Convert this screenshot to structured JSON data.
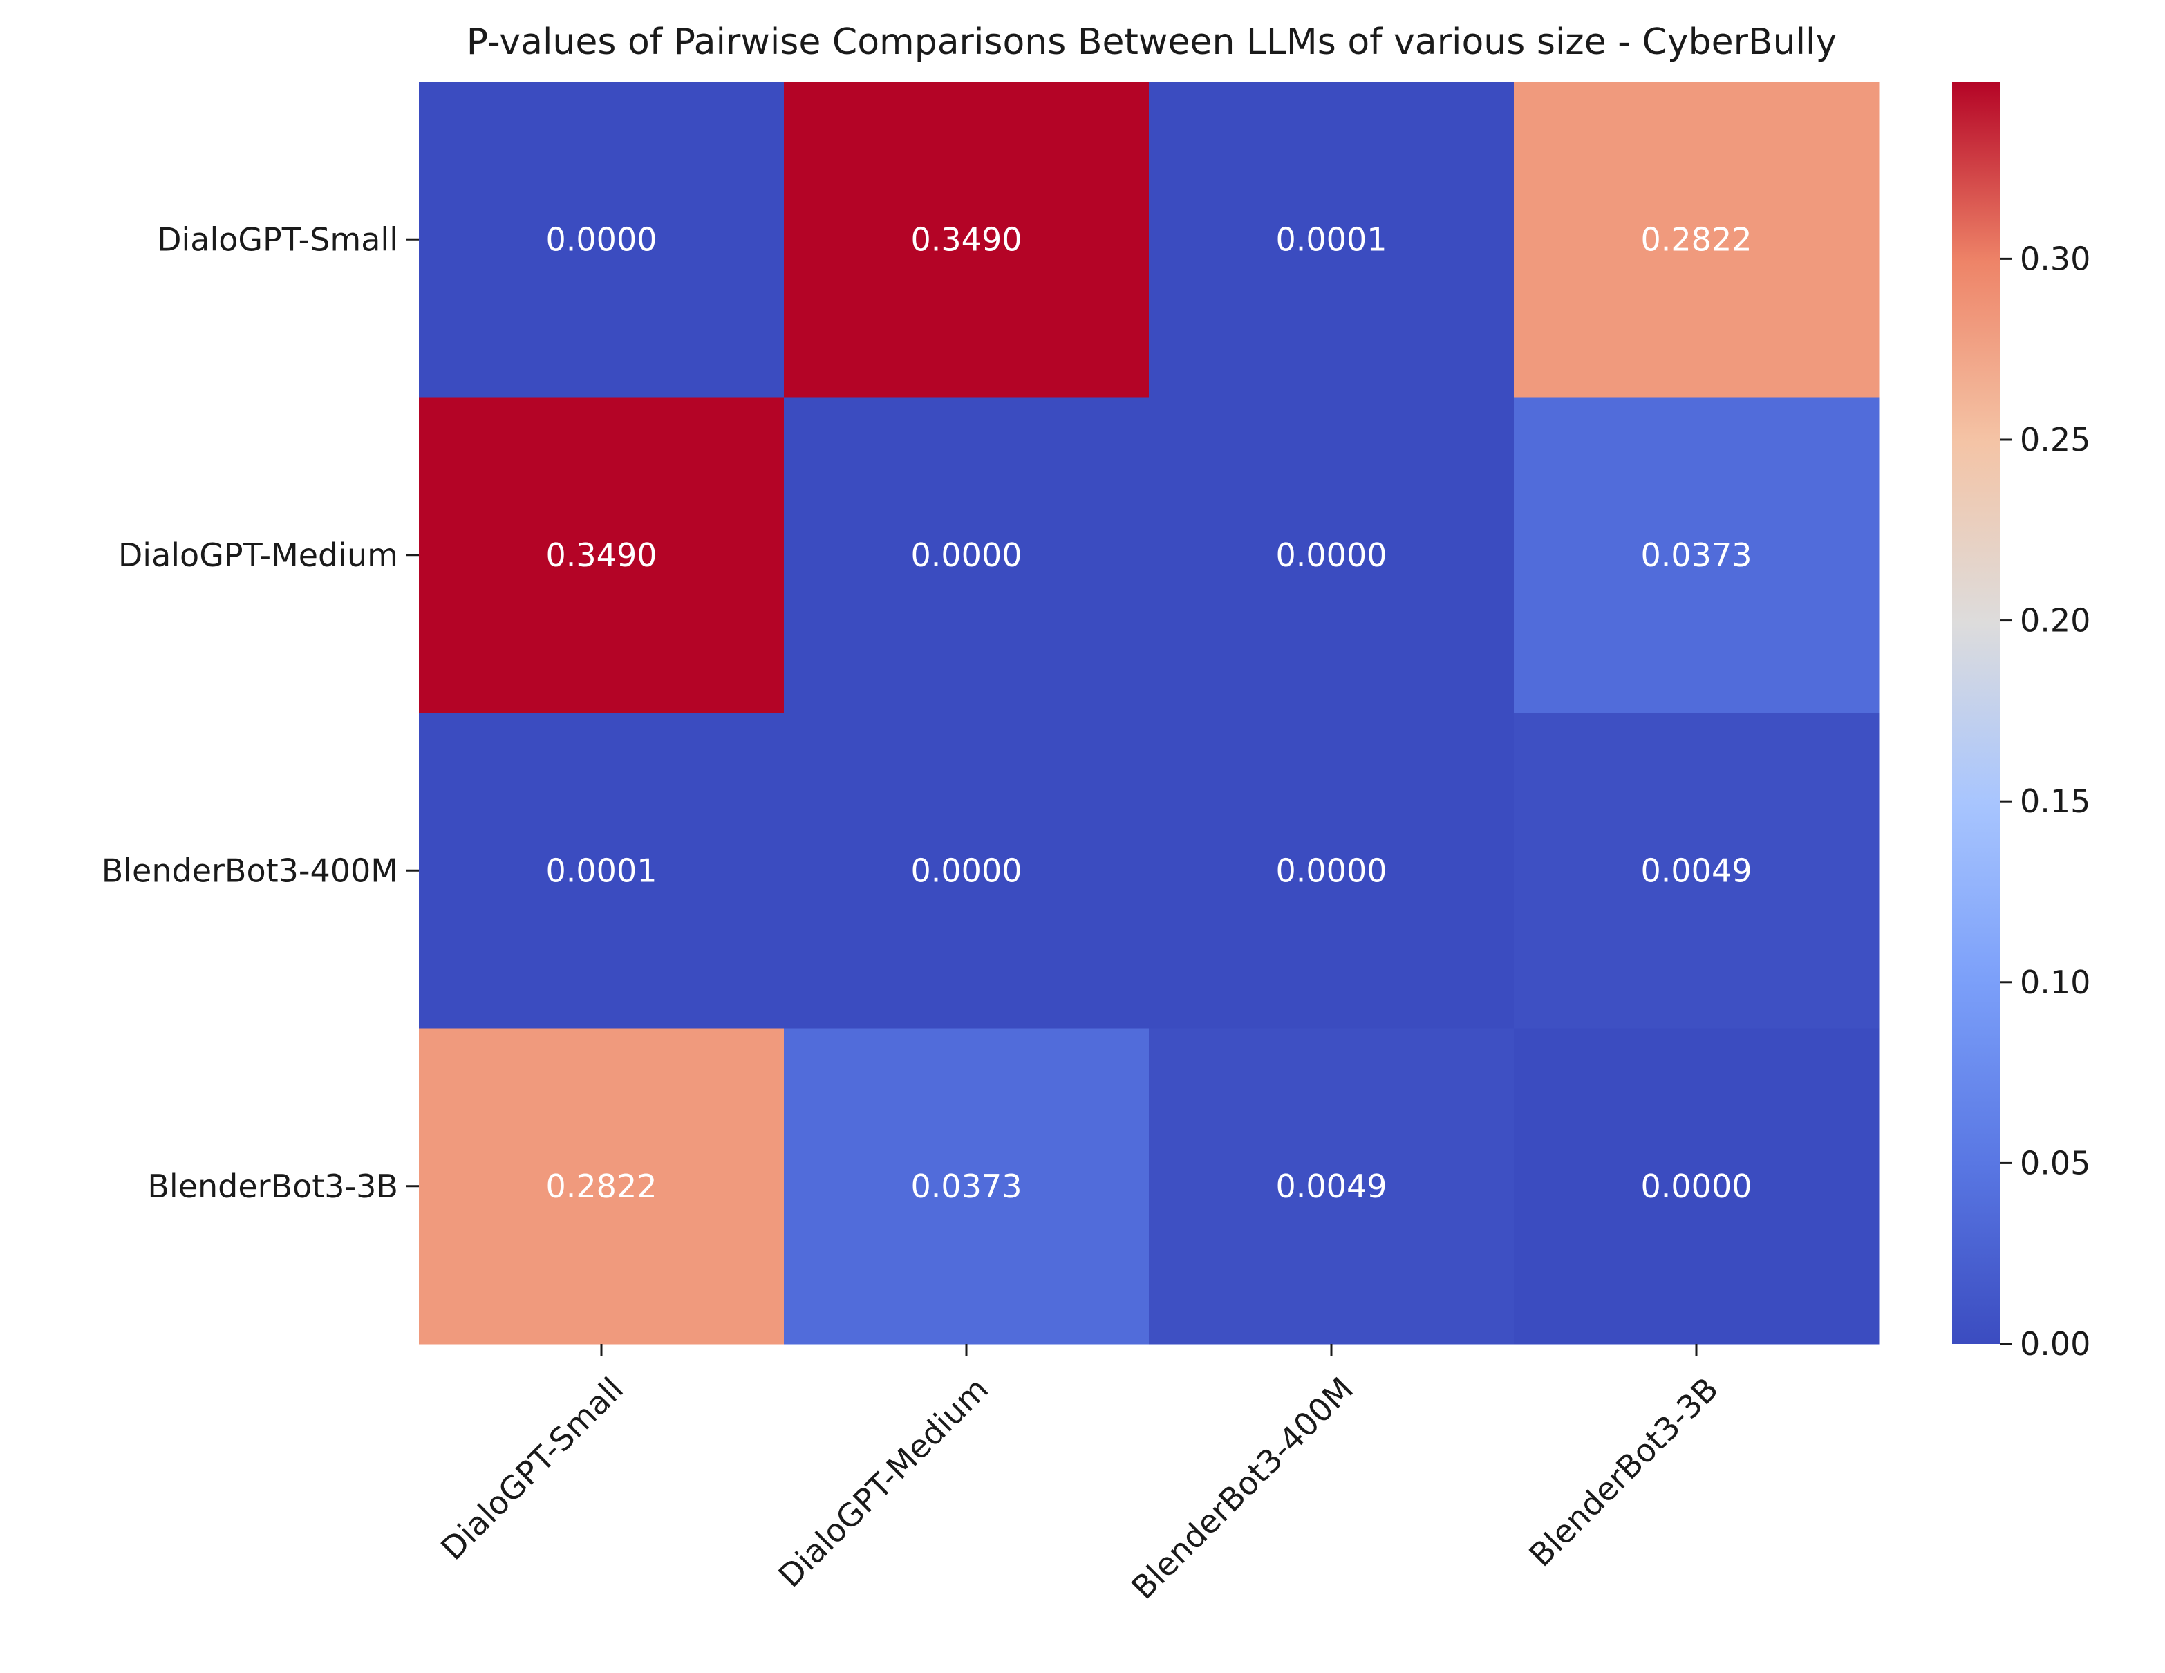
{
  "chart_data": {
    "type": "heatmap",
    "title": "P-values of Pairwise Comparisons Between LLMs of various size - CyberBully",
    "row_labels": [
      "DialoGPT-Small",
      "DialoGPT-Medium",
      "BlenderBot3-400M",
      "BlenderBot3-3B"
    ],
    "col_labels": [
      "DialoGPT-Small",
      "DialoGPT-Medium",
      "BlenderBot3-400M",
      "BlenderBot3-3B"
    ],
    "values": [
      [
        0.0,
        0.349,
        0.0001,
        0.2822
      ],
      [
        0.349,
        0.0,
        0.0,
        0.0373
      ],
      [
        0.0001,
        0.0,
        0.0,
        0.0049
      ],
      [
        0.2822,
        0.0373,
        0.0049,
        0.0
      ]
    ],
    "annotations": [
      [
        "0.0000",
        "0.3490",
        "0.0001",
        "0.2822"
      ],
      [
        "0.3490",
        "0.0000",
        "0.0000",
        "0.0373"
      ],
      [
        "0.0001",
        "0.0000",
        "0.0000",
        "0.0049"
      ],
      [
        "0.2822",
        "0.0373",
        "0.0049",
        "0.0000"
      ]
    ],
    "colormap": "coolwarm",
    "vmin": 0.0,
    "vmax": 0.349,
    "colorbar": {
      "ticks": [
        0.0,
        0.05,
        0.1,
        0.15,
        0.2,
        0.25,
        0.3
      ],
      "tick_labels": [
        "0.00",
        "0.05",
        "0.10",
        "0.15",
        "0.20",
        "0.25",
        "0.30"
      ],
      "placement": "right"
    },
    "xlabel": "",
    "ylabel": ""
  }
}
